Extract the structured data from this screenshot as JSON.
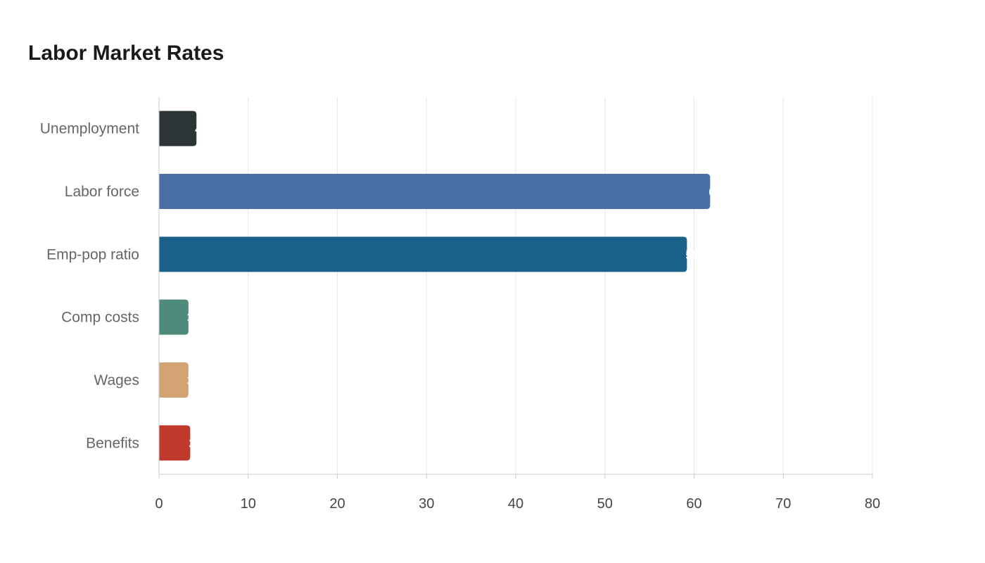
{
  "chart_data": {
    "type": "bar",
    "orientation": "horizontal",
    "title": "Labor Market Rates",
    "categories": [
      "Unemployment",
      "Labor force",
      "Emp-pop ratio",
      "Comp costs",
      "Wages",
      "Benefits"
    ],
    "values": [
      4.2,
      61.8,
      59.2,
      3.3,
      3.3,
      3.5
    ],
    "colors": [
      "#2d3436",
      "#4a6fa5",
      "#1a6189",
      "#4e8b7a",
      "#d4a373",
      "#c0392b"
    ],
    "xlim": [
      0,
      80
    ],
    "xticks": [
      "0",
      "10",
      "20",
      "30",
      "40",
      "50",
      "60",
      "70",
      "80"
    ],
    "grid": true,
    "legend": "none"
  }
}
